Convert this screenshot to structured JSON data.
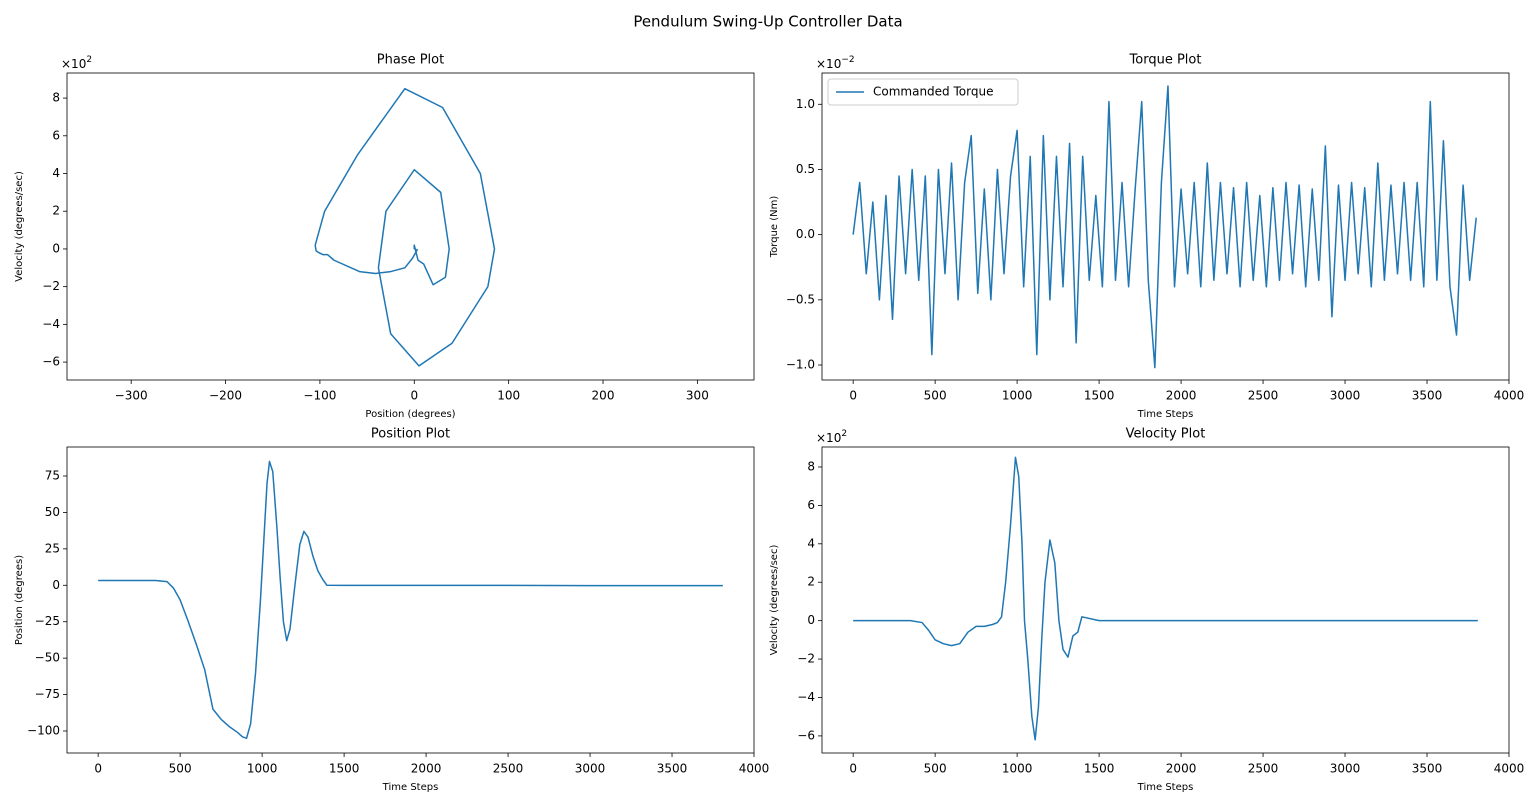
{
  "title": "Pendulum Swing-Up Controller Data",
  "chart_data": [
    {
      "type": "line",
      "title": "Phase Plot",
      "xlabel": "Position (degrees)",
      "ylabel": "Velocity (degrees/sec)",
      "color": "#1f77b4",
      "x": [
        3.3,
        3.3,
        2.5,
        -2,
        -10,
        -25,
        -41,
        -58,
        -85,
        -92,
        -97,
        -101,
        -104,
        -105,
        -95,
        -60,
        -10,
        30,
        70,
        85,
        78,
        40,
        5,
        -25,
        -38,
        -30,
        0,
        28,
        37,
        33,
        20,
        10,
        4,
        0,
        -0.1,
        -0.1,
        -0.1,
        -0.2,
        -0.2,
        -0.2
      ],
      "values": [
        0,
        0,
        -0.1,
        -0.5,
        -1.0,
        -1.2,
        -1.3,
        -1.2,
        -0.6,
        -0.3,
        -0.3,
        -0.2,
        -0.1,
        0.2,
        2,
        5,
        8.5,
        7.5,
        4,
        0,
        -2,
        -5,
        -6.2,
        -4.5,
        -1,
        2,
        4.2,
        3,
        0,
        -1.5,
        -1.9,
        -0.8,
        -0.6,
        0.2,
        0,
        0,
        0,
        0,
        0,
        0
      ],
      "xlim": [
        -368,
        360
      ],
      "ylim": [
        -6.95,
        9.33
      ],
      "xticks": [
        {
          "value": -300,
          "label": "−300"
        },
        {
          "value": -200,
          "label": "−200"
        },
        {
          "value": -100,
          "label": "−100"
        },
        0,
        100,
        200,
        300
      ],
      "yticks": [
        {
          "value": -6,
          "label": "−6"
        },
        {
          "value": -4,
          "label": "−4"
        },
        {
          "value": -2,
          "label": "−2"
        },
        0,
        2,
        4,
        6,
        8
      ],
      "y_scale": {
        "base": "×10",
        "exponent": "2"
      }
    },
    {
      "type": "line",
      "title": "Torque Plot",
      "xlabel": "Time Steps",
      "ylabel": "Torque (Nm)",
      "legend": "upper left",
      "x": [
        0,
        40,
        80,
        120,
        160,
        200,
        240,
        280,
        320,
        360,
        400,
        440,
        480,
        520,
        560,
        600,
        640,
        680,
        720,
        760,
        800,
        840,
        880,
        920,
        960,
        1000,
        1040,
        1080,
        1120,
        1160,
        1200,
        1240,
        1280,
        1320,
        1360,
        1400,
        1440,
        1480,
        1520,
        1560,
        1600,
        1640,
        1680,
        1720,
        1760,
        1800,
        1840,
        1880,
        1920,
        1960,
        2000,
        2040,
        2080,
        2120,
        2160,
        2200,
        2240,
        2280,
        2320,
        2360,
        2400,
        2440,
        2480,
        2520,
        2560,
        2600,
        2640,
        2680,
        2720,
        2760,
        2800,
        2840,
        2880,
        2920,
        2960,
        3000,
        3040,
        3080,
        3120,
        3160,
        3200,
        3240,
        3280,
        3320,
        3360,
        3400,
        3440,
        3480,
        3520,
        3560,
        3600,
        3640,
        3680,
        3720,
        3760,
        3800
      ],
      "series": [
        {
          "name": "Commanded Torque",
          "color": "#1f77b4",
          "values": [
            0.0,
            0.4,
            -0.3,
            0.25,
            -0.5,
            0.3,
            -0.65,
            0.45,
            -0.3,
            0.5,
            -0.35,
            0.45,
            -0.92,
            0.5,
            -0.3,
            0.55,
            -0.5,
            0.4,
            0.76,
            -0.45,
            0.35,
            -0.5,
            0.5,
            -0.3,
            0.45,
            0.8,
            -0.4,
            0.6,
            -0.92,
            0.76,
            -0.5,
            0.6,
            -0.4,
            0.7,
            -0.83,
            0.6,
            -0.35,
            0.3,
            -0.4,
            1.02,
            -0.35,
            0.4,
            -0.4,
            0.35,
            1.02,
            -0.35,
            -1.02,
            0.4,
            1.14,
            -0.4,
            0.35,
            -0.3,
            0.4,
            -0.4,
            0.55,
            -0.35,
            0.4,
            -0.3,
            0.36,
            -0.4,
            0.4,
            -0.35,
            0.3,
            -0.4,
            0.36,
            -0.35,
            0.4,
            -0.3,
            0.38,
            -0.4,
            0.35,
            -0.35,
            0.68,
            -0.63,
            0.38,
            -0.35,
            0.4,
            -0.3,
            0.36,
            -0.4,
            0.55,
            -0.35,
            0.38,
            -0.3,
            0.4,
            -0.35,
            0.4,
            -0.4,
            1.02,
            -0.35,
            0.72,
            -0.4,
            -0.77,
            0.38,
            -0.35,
            0.13
          ]
        }
      ],
      "xlim": [
        -190,
        4000
      ],
      "ylim": [
        -1.115,
        1.24
      ],
      "xticks": [
        0,
        500,
        1000,
        1500,
        2000,
        2500,
        3000,
        3500,
        4000
      ],
      "yticks": [
        {
          "value": -1.0,
          "label": "−1.0"
        },
        {
          "value": -0.5,
          "label": "−0.5"
        },
        {
          "value": 0,
          "label": "0.0"
        },
        {
          "value": 0.5,
          "label": "0.5"
        },
        {
          "value": 1.0,
          "label": "1.0"
        }
      ],
      "y_scale": {
        "base": "×10",
        "exponent": "−2"
      }
    },
    {
      "type": "line",
      "title": "Position Plot",
      "xlabel": "Time Steps",
      "ylabel": "Position (degrees)",
      "color": "#1f77b4",
      "x": [
        0,
        350,
        420,
        460,
        500,
        550,
        600,
        650,
        700,
        750,
        800,
        850,
        880,
        905,
        930,
        960,
        990,
        1010,
        1030,
        1045,
        1065,
        1090,
        1110,
        1130,
        1150,
        1170,
        1200,
        1230,
        1255,
        1280,
        1310,
        1340,
        1370,
        1395,
        1500,
        2000,
        2500,
        3000,
        3500,
        3810
      ],
      "values": [
        3.3,
        3.3,
        2.5,
        -2,
        -10,
        -25,
        -41,
        -58,
        -85,
        -92,
        -97,
        -101,
        -104,
        -105,
        -95,
        -60,
        -10,
        30,
        70,
        85,
        78,
        40,
        5,
        -25,
        -38,
        -30,
        0,
        28,
        37,
        33,
        20,
        10,
        4,
        0,
        -0.1,
        -0.1,
        -0.1,
        -0.2,
        -0.2,
        -0.2
      ],
      "xlim": [
        -190,
        4000
      ],
      "ylim": [
        -115.1,
        94.9
      ],
      "xticks": [
        0,
        500,
        1000,
        1500,
        2000,
        2500,
        3000,
        3500,
        4000
      ],
      "yticks": [
        {
          "value": -100,
          "label": "−100"
        },
        {
          "value": -75,
          "label": "−75"
        },
        {
          "value": -50,
          "label": "−50"
        },
        {
          "value": -25,
          "label": "−25"
        },
        0,
        25,
        50,
        75
      ]
    },
    {
      "type": "line",
      "title": "Velocity Plot",
      "xlabel": "Time Steps",
      "ylabel": "Velocity (degrees/sec)",
      "color": "#1f77b4",
      "x": [
        0,
        350,
        420,
        460,
        500,
        550,
        600,
        650,
        700,
        750,
        800,
        850,
        880,
        905,
        930,
        960,
        990,
        1010,
        1030,
        1045,
        1065,
        1090,
        1110,
        1130,
        1150,
        1170,
        1200,
        1230,
        1255,
        1280,
        1310,
        1340,
        1370,
        1395,
        1500,
        2000,
        2500,
        3000,
        3500,
        3810
      ],
      "values": [
        0,
        0,
        -0.1,
        -0.5,
        -1.0,
        -1.2,
        -1.3,
        -1.2,
        -0.6,
        -0.3,
        -0.3,
        -0.2,
        -0.1,
        0.2,
        2,
        5,
        8.5,
        7.5,
        4,
        0,
        -2,
        -5,
        -6.2,
        -4.5,
        -1,
        2,
        4.2,
        3,
        0,
        -1.5,
        -1.9,
        -0.8,
        -0.6,
        0.2,
        0,
        0,
        0,
        0,
        0,
        0
      ],
      "xlim": [
        -190,
        4000
      ],
      "ylim": [
        -6.89,
        9.04
      ],
      "xticks": [
        0,
        500,
        1000,
        1500,
        2000,
        2500,
        3000,
        3500,
        4000
      ],
      "yticks": [
        {
          "value": -6,
          "label": "−6"
        },
        {
          "value": -4,
          "label": "−4"
        },
        {
          "value": -2,
          "label": "−2"
        },
        0,
        2,
        4,
        6,
        8
      ],
      "y_scale": {
        "base": "×10",
        "exponent": "2"
      }
    }
  ]
}
